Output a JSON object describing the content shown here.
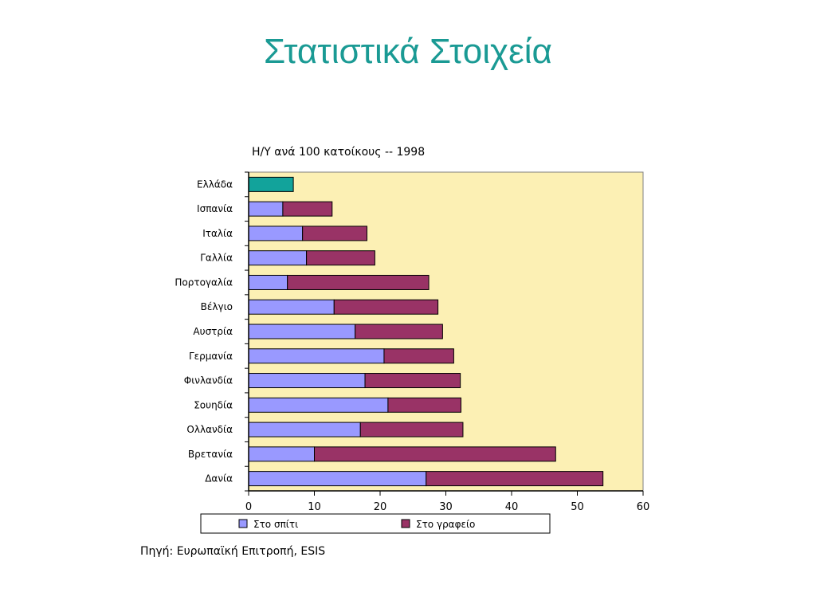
{
  "slide": {
    "title": "Στατιστικά Στοιχεία",
    "source": "Πηγή: Ευρωπαϊκή Επιτροπή, ESIS"
  },
  "colors": {
    "plot_bg": "#fcf0b4",
    "home": "#9999ff",
    "office": "#993366",
    "greece": "#12a39b"
  },
  "chart_data": {
    "type": "bar",
    "orientation": "horizontal",
    "stacked": true,
    "title": "Η/Υ ανά 100 κατοίκους -- 1998",
    "categories": [
      "Ελλάδα",
      "Ισπανία",
      "Ιταλία",
      "Γαλλία",
      "Πορτογαλία",
      "Βέλγιο",
      "Αυστρία",
      "Γερμανία",
      "Φινλανδία",
      "Σουηδία",
      "Ολλανδία",
      "Βρετανία",
      "Δανία"
    ],
    "series": [
      {
        "name": "Στο σπίτι",
        "values": [
          0.5,
          5.2,
          8.2,
          8.8,
          5.9,
          13.0,
          16.2,
          20.6,
          17.7,
          21.2,
          17.0,
          10.0,
          27.0
        ]
      },
      {
        "name": "Στο γραφείο",
        "values": [
          6.3,
          7.5,
          9.8,
          10.4,
          21.5,
          15.8,
          13.3,
          10.6,
          14.5,
          11.1,
          15.6,
          36.7,
          26.9
        ]
      }
    ],
    "highlight": {
      "category": "Ελλάδα",
      "total": 6.8,
      "color": "#12a39b"
    },
    "xlim": [
      0,
      60
    ],
    "xticks": [
      0,
      10,
      20,
      30,
      40,
      50,
      60
    ],
    "grid": false,
    "legend_position": "bottom"
  }
}
